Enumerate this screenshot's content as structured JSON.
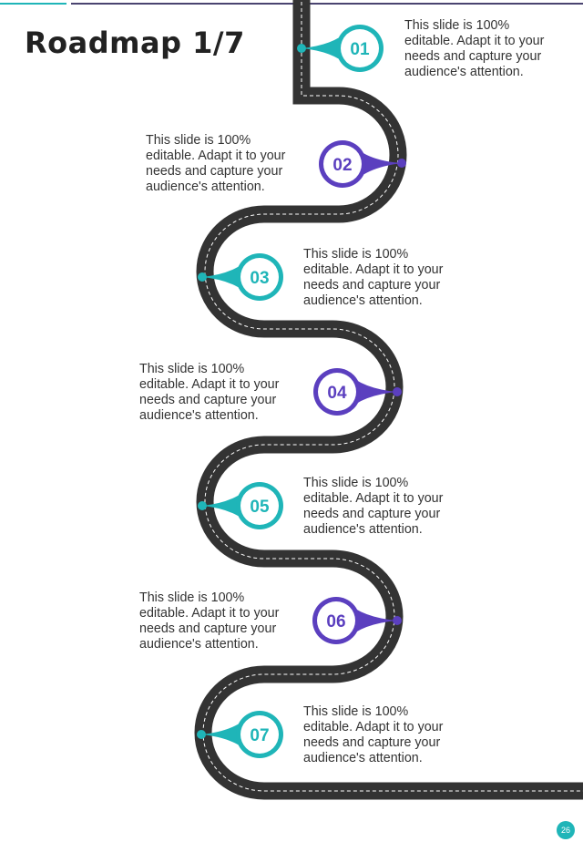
{
  "title": "Roadmap 1/7",
  "colors": {
    "teal": "#1fb5b8",
    "purple": "#5b3fbf",
    "road": "#333333"
  },
  "milestones": [
    {
      "number": "01",
      "color": "teal",
      "text": "This slide is 100% editable. Adapt it to your needs and capture your audience's attention."
    },
    {
      "number": "02",
      "color": "purple",
      "text": "This slide is 100% editable. Adapt it to your needs and capture your audience's attention."
    },
    {
      "number": "03",
      "color": "teal",
      "text": "This slide is 100% editable. Adapt it to your needs and capture your audience's attention."
    },
    {
      "number": "04",
      "color": "purple",
      "text": "This slide is 100% editable. Adapt it to your needs and capture your audience's attention."
    },
    {
      "number": "05",
      "color": "teal",
      "text": "This slide is 100% editable. Adapt it to your needs and capture your audience's attention."
    },
    {
      "number": "06",
      "color": "purple",
      "text": "This slide is 100% editable. Adapt it to your needs and capture your audience's attention."
    },
    {
      "number": "07",
      "color": "teal",
      "text": "This slide is 100% editable. Adapt it to your needs and capture your audience's attention."
    }
  ],
  "page_number": "26"
}
